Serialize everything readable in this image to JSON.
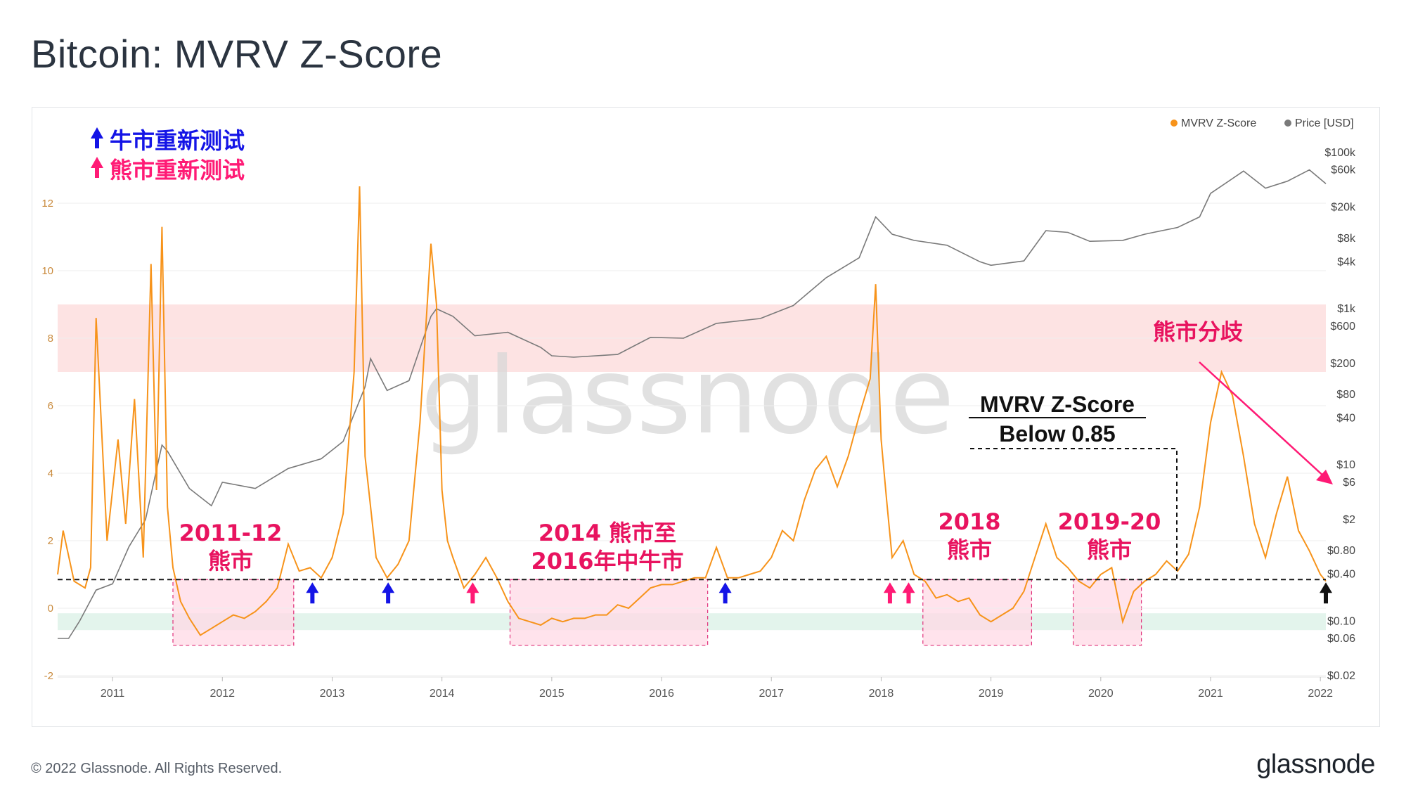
{
  "header": {
    "title": "Bitcoin: MVRV Z-Score"
  },
  "footer": {
    "copyright": "© 2022 Glassnode. All Rights Reserved.",
    "brand": "glassnode"
  },
  "watermark": "glassnode",
  "colors": {
    "zscore": "#f7931a",
    "price": "#7a7a7a",
    "upper_band": "#fde3e3",
    "lower_band": "#e3f4ec",
    "bear_box": "#ffd9e6",
    "bear_box_border": "#e0307a",
    "bull_arrow": "#1414e6",
    "bear_arrow": "#ff1a75",
    "title": "#2b3440"
  },
  "legend_topleft": [
    {
      "label": "牛市重新测试",
      "icon": "blue-up-arrow-icon",
      "color": "#1414e6"
    },
    {
      "label": "熊市重新测试",
      "icon": "pink-up-arrow-icon",
      "color": "#ff1a75"
    }
  ],
  "annotations": {
    "bear_2011_12": [
      "2011-12",
      "熊市"
    ],
    "bear_2014_16": [
      "2014 熊市至",
      "2016年中牛市"
    ],
    "bear_2018": [
      "2018",
      "熊市"
    ],
    "bear_2019_20": [
      "2019-20",
      "熊市"
    ],
    "divergence": "熊市分歧",
    "threshold_box": [
      "MVRV Z-Score",
      "Below 0.85"
    ]
  },
  "chart_data": {
    "type": "line",
    "title": "Bitcoin: MVRV Z-Score",
    "legend": [
      {
        "name": "MVRV Z-Score",
        "color": "#f7931a"
      },
      {
        "name": "Price [USD]",
        "color": "#7a7a7a"
      }
    ],
    "legend_position": "top-right",
    "x_ticks": [
      "2011",
      "2012",
      "2013",
      "2014",
      "2015",
      "2016",
      "2017",
      "2018",
      "2019",
      "2020",
      "2021",
      "2022"
    ],
    "xlim": [
      2010.5,
      2022.05
    ],
    "left_axis": {
      "ticks": [
        -2,
        0,
        2,
        4,
        6,
        8,
        10,
        12
      ],
      "ylim": [
        -2,
        14
      ]
    },
    "right_axis": {
      "scale": "log",
      "tick_values": [
        0.02,
        0.06,
        0.1,
        0.4,
        0.8,
        2,
        6,
        10,
        40,
        80,
        200,
        600,
        1000,
        4000,
        8000,
        20000,
        60000,
        100000
      ],
      "tick_labels": [
        "$0.02",
        "$0.06",
        "$0.10",
        "$0.40",
        "$0.80",
        "$2",
        "$6",
        "$10",
        "$40",
        "$80",
        "$200",
        "$600",
        "$1k",
        "$4k",
        "$8k",
        "$20k",
        "$60k",
        "$100k"
      ]
    },
    "bands": [
      {
        "from": 7,
        "to": 9,
        "color": "#fde3e3"
      },
      {
        "from": -0.65,
        "to": -0.15,
        "color": "#e3f4ec"
      }
    ],
    "threshold": 0.85,
    "bear_boxes": [
      {
        "x_from": 2011.55,
        "x_to": 2012.65,
        "y_from": -1.1,
        "y_to": 0.85
      },
      {
        "x_from": 2014.62,
        "x_to": 2016.42,
        "y_from": -1.1,
        "y_to": 0.85
      },
      {
        "x_from": 2018.38,
        "x_to": 2019.37,
        "y_from": -1.1,
        "y_to": 0.85
      },
      {
        "x_from": 2019.75,
        "x_to": 2020.37,
        "y_from": -1.1,
        "y_to": 0.85
      }
    ],
    "bull_retests": [
      2012.82,
      2013.51,
      2016.58
    ],
    "bear_retests": [
      2014.28,
      2018.08,
      2018.25
    ],
    "current_marker": 2022.05,
    "series": [
      {
        "name": "MVRV Z-Score",
        "x": [
          2010.5,
          2010.55,
          2010.65,
          2010.75,
          2010.8,
          2010.85,
          2010.95,
          2011.05,
          2011.12,
          2011.2,
          2011.28,
          2011.35,
          2011.4,
          2011.45,
          2011.5,
          2011.55,
          2011.62,
          2011.7,
          2011.8,
          2011.9,
          2012.0,
          2012.1,
          2012.2,
          2012.3,
          2012.4,
          2012.5,
          2012.6,
          2012.7,
          2012.8,
          2012.9,
          2013.0,
          2013.1,
          2013.2,
          2013.25,
          2013.3,
          2013.4,
          2013.5,
          2013.6,
          2013.7,
          2013.8,
          2013.9,
          2013.95,
          2014.0,
          2014.05,
          2014.1,
          2014.2,
          2014.3,
          2014.4,
          2014.5,
          2014.6,
          2014.7,
          2014.8,
          2014.9,
          2015.0,
          2015.1,
          2015.2,
          2015.3,
          2015.4,
          2015.5,
          2015.6,
          2015.7,
          2015.8,
          2015.9,
          2016.0,
          2016.1,
          2016.2,
          2016.3,
          2016.4,
          2016.5,
          2016.6,
          2016.7,
          2016.8,
          2016.9,
          2017.0,
          2017.1,
          2017.2,
          2017.3,
          2017.4,
          2017.5,
          2017.6,
          2017.7,
          2017.8,
          2017.9,
          2017.95,
          2018.0,
          2018.05,
          2018.1,
          2018.2,
          2018.3,
          2018.4,
          2018.5,
          2018.6,
          2018.7,
          2018.8,
          2018.9,
          2019.0,
          2019.1,
          2019.2,
          2019.3,
          2019.4,
          2019.5,
          2019.6,
          2019.7,
          2019.8,
          2019.9,
          2020.0,
          2020.1,
          2020.2,
          2020.3,
          2020.4,
          2020.5,
          2020.6,
          2020.7,
          2020.8,
          2020.9,
          2021.0,
          2021.1,
          2021.2,
          2021.3,
          2021.4,
          2021.5,
          2021.6,
          2021.7,
          2021.8,
          2021.9,
          2022.0,
          2022.05
        ],
        "values": [
          1.0,
          2.3,
          0.8,
          0.6,
          1.2,
          8.6,
          2.0,
          5.0,
          2.5,
          6.2,
          1.5,
          10.2,
          3.5,
          11.3,
          3.0,
          1.2,
          0.2,
          -0.3,
          -0.8,
          -0.6,
          -0.4,
          -0.2,
          -0.3,
          -0.1,
          0.2,
          0.6,
          1.9,
          1.1,
          1.2,
          0.9,
          1.5,
          2.8,
          7.0,
          12.5,
          4.5,
          1.5,
          0.9,
          1.3,
          2.0,
          5.5,
          10.8,
          9.0,
          3.5,
          2.0,
          1.5,
          0.6,
          1.0,
          1.5,
          0.9,
          0.2,
          -0.3,
          -0.4,
          -0.5,
          -0.3,
          -0.4,
          -0.3,
          -0.3,
          -0.2,
          -0.2,
          0.1,
          0.0,
          0.3,
          0.6,
          0.7,
          0.7,
          0.8,
          0.9,
          0.9,
          1.8,
          0.9,
          0.9,
          1.0,
          1.1,
          1.5,
          2.3,
          2.0,
          3.2,
          4.1,
          4.5,
          3.6,
          4.5,
          5.7,
          6.8,
          9.6,
          5.0,
          3.2,
          1.5,
          2.0,
          1.0,
          0.8,
          0.3,
          0.4,
          0.2,
          0.3,
          -0.2,
          -0.4,
          -0.2,
          0.0,
          0.5,
          1.5,
          2.5,
          1.5,
          1.2,
          0.8,
          0.6,
          1.0,
          1.2,
          -0.4,
          0.5,
          0.8,
          1.0,
          1.4,
          1.1,
          1.6,
          3.0,
          5.5,
          7.0,
          6.3,
          4.5,
          2.5,
          1.5,
          2.8,
          3.9,
          2.3,
          1.7,
          1.0,
          0.8
        ]
      },
      {
        "name": "Price [USD]",
        "x": [
          2010.5,
          2010.6,
          2010.7,
          2010.85,
          2011.0,
          2011.15,
          2011.3,
          2011.45,
          2011.5,
          2011.7,
          2011.9,
          2012.0,
          2012.3,
          2012.6,
          2012.9,
          2013.1,
          2013.3,
          2013.35,
          2013.5,
          2013.7,
          2013.9,
          2013.95,
          2014.1,
          2014.3,
          2014.6,
          2014.9,
          2015.0,
          2015.2,
          2015.6,
          2015.9,
          2016.2,
          2016.5,
          2016.9,
          2017.2,
          2017.5,
          2017.8,
          2017.95,
          2018.1,
          2018.3,
          2018.6,
          2018.9,
          2019.0,
          2019.3,
          2019.5,
          2019.7,
          2019.9,
          2020.2,
          2020.4,
          2020.7,
          2020.9,
          2021.0,
          2021.3,
          2021.5,
          2021.7,
          2021.9,
          2022.05
        ],
        "values": [
          0.06,
          0.06,
          0.1,
          0.25,
          0.3,
          0.9,
          2,
          18,
          15,
          5,
          3,
          6,
          5,
          9,
          12,
          20,
          100,
          230,
          90,
          120,
          800,
          1000,
          800,
          450,
          500,
          320,
          250,
          240,
          260,
          430,
          420,
          650,
          750,
          1100,
          2500,
          4500,
          15000,
          9000,
          7500,
          6500,
          4000,
          3600,
          4100,
          10000,
          9500,
          7300,
          7500,
          9000,
          11000,
          15000,
          30000,
          58000,
          35000,
          43000,
          60000,
          40000
        ]
      }
    ]
  }
}
